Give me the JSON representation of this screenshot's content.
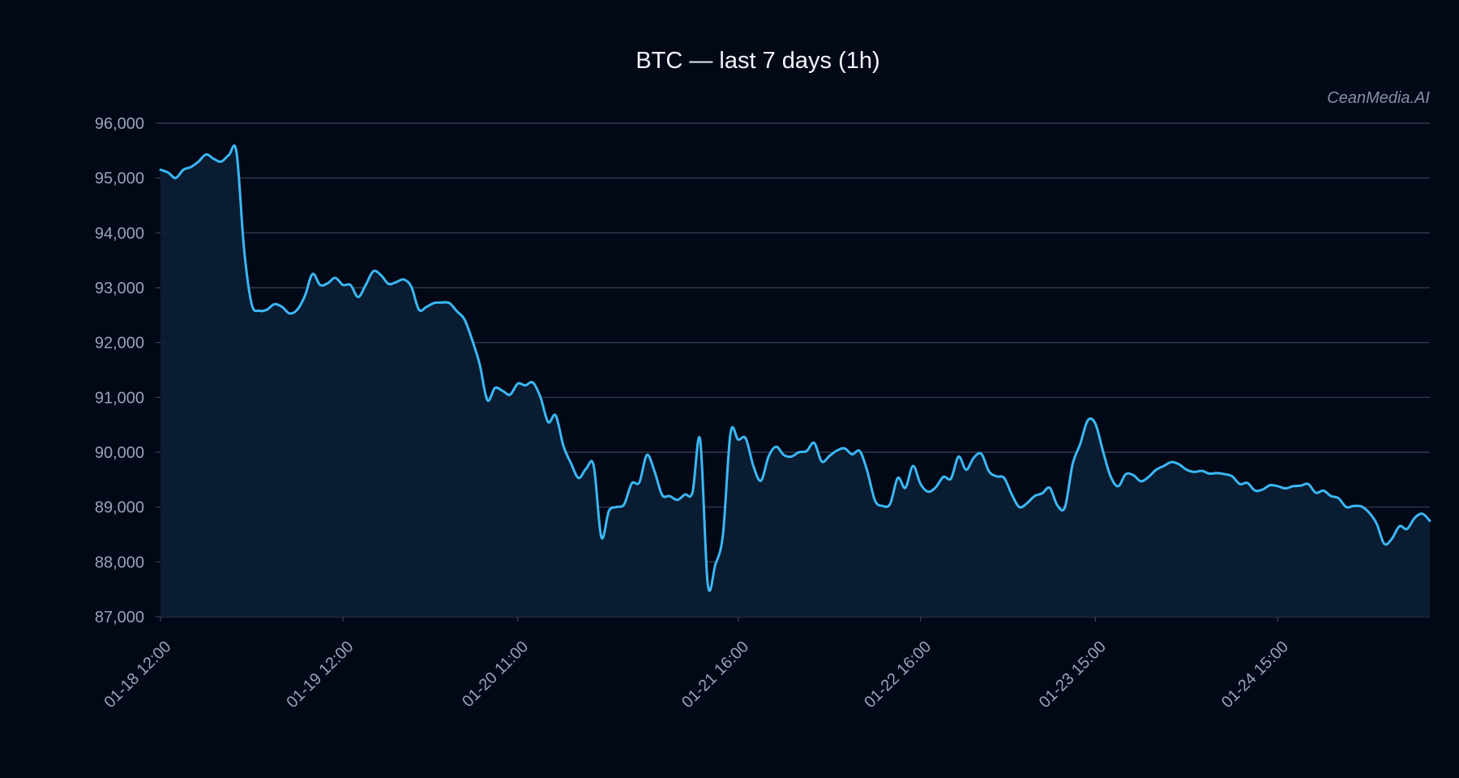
{
  "colors": {
    "background": "#030817",
    "line": "#3bb8f5",
    "area": "#0b1d33",
    "grid": "#3a4356",
    "title": "#f1f4fa",
    "ticks": "#9aa3b8",
    "watermark": "#8790a6"
  },
  "watermark": "CeanMedia.AI",
  "chart_data": {
    "type": "area",
    "title": "BTC — last 7 days (1h)",
    "xlabel": "",
    "ylabel": "",
    "grid": true,
    "legend": "none",
    "ylim": [
      87000,
      96000
    ],
    "yticks": [
      87000,
      88000,
      89000,
      90000,
      91000,
      92000,
      93000,
      94000,
      95000,
      96000
    ],
    "ytick_labels": [
      "87,000",
      "88,000",
      "89,000",
      "90,000",
      "91,000",
      "92,000",
      "93,000",
      "94,000",
      "95,000",
      "96,000"
    ],
    "x_start": "01-18 12:00",
    "x_interval": "1h",
    "xticks": [
      {
        "index": 0,
        "label": "01-18 12:00"
      },
      {
        "index": 24,
        "label": "01-19 12:00"
      },
      {
        "index": 47,
        "label": "01-20 11:00"
      },
      {
        "index": 76,
        "label": "01-21 16:00"
      },
      {
        "index": 100,
        "label": "01-22 16:00"
      },
      {
        "index": 123,
        "label": "01-23 15:00"
      },
      {
        "index": 147,
        "label": "01-24 15:00"
      }
    ],
    "values": [
      95150,
      95100,
      95000,
      95150,
      95200,
      95300,
      95430,
      95350,
      95300,
      95420,
      95470,
      93700,
      92700,
      92580,
      92600,
      92700,
      92650,
      92530,
      92600,
      92850,
      93250,
      93050,
      93080,
      93180,
      93050,
      93050,
      92830,
      93050,
      93300,
      93230,
      93070,
      93100,
      93150,
      93020,
      92600,
      92650,
      92720,
      92730,
      92720,
      92570,
      92420,
      92050,
      91600,
      90950,
      91170,
      91120,
      91050,
      91250,
      91220,
      91270,
      91000,
      90550,
      90670,
      90120,
      89800,
      89530,
      89700,
      89750,
      88450,
      88930,
      89000,
      89050,
      89430,
      89450,
      89950,
      89650,
      89220,
      89200,
      89130,
      89230,
      89270,
      90230,
      87600,
      87950,
      88500,
      90350,
      90230,
      90250,
      89750,
      89480,
      89920,
      90100,
      89950,
      89920,
      90000,
      90020,
      90170,
      89830,
      89930,
      90030,
      90070,
      89960,
      90020,
      89650,
      89120,
      89020,
      89060,
      89530,
      89350,
      89750,
      89420,
      89280,
      89360,
      89550,
      89520,
      89920,
      89680,
      89900,
      89970,
      89650,
      89560,
      89530,
      89230,
      89000,
      89070,
      89200,
      89250,
      89350,
      89030,
      89000,
      89780,
      90150,
      90580,
      90520,
      90020,
      89560,
      89380,
      89600,
      89580,
      89470,
      89550,
      89680,
      89750,
      89820,
      89780,
      89680,
      89640,
      89660,
      89610,
      89620,
      89600,
      89560,
      89420,
      89440,
      89300,
      89320,
      89400,
      89380,
      89340,
      89380,
      89390,
      89420,
      89260,
      89300,
      89200,
      89160,
      89000,
      89020,
      89010,
      88900,
      88700,
      88330,
      88420,
      88650,
      88600,
      88800,
      88880,
      88750
    ]
  }
}
